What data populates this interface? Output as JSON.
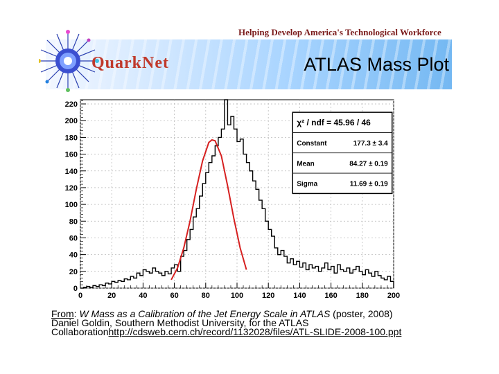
{
  "header": {
    "tagline": "Helping Develop America's Technological Workforce",
    "logo_text": "QuarkNet",
    "title": "ATLAS Mass Plot"
  },
  "colors": {
    "histogram": "#000000",
    "fit": "#d62020",
    "logo_text": "#c0392b"
  },
  "chart_data": {
    "type": "line",
    "title": "",
    "xlabel": "",
    "ylabel": "",
    "xlim": [
      0,
      200
    ],
    "ylim": [
      0,
      225
    ],
    "x_ticks": [
      "0",
      "20",
      "40",
      "60",
      "80",
      "100",
      "120",
      "140",
      "160",
      "180",
      "200"
    ],
    "y_ticks": [
      "0",
      "20",
      "40",
      "60",
      "80",
      "100",
      "120",
      "140",
      "160",
      "180",
      "200",
      "220"
    ],
    "grid": true,
    "series": [
      {
        "kind": "histogram",
        "bin_start": 0,
        "bin_width": 2,
        "values": [
          0,
          1,
          2,
          1,
          3,
          2,
          4,
          3,
          6,
          5,
          8,
          7,
          9,
          8,
          11,
          10,
          14,
          12,
          18,
          15,
          22,
          20,
          18,
          24,
          20,
          18,
          15,
          20,
          17,
          24,
          28,
          20,
          38,
          45,
          58,
          70,
          85,
          95,
          110,
          125,
          138,
          150,
          158,
          170,
          180,
          190,
          230,
          195,
          205,
          190,
          175,
          178,
          160,
          150,
          140,
          128,
          118,
          105,
          95,
          80,
          70,
          62,
          48,
          40,
          45,
          38,
          30,
          35,
          28,
          32,
          25,
          30,
          22,
          28,
          24,
          26,
          20,
          24,
          30,
          22,
          26,
          18,
          28,
          22,
          20,
          24,
          18,
          22,
          26,
          20,
          16,
          22,
          18,
          14,
          20,
          15,
          12,
          10,
          14,
          8
        ]
      },
      {
        "kind": "gaussian-fit",
        "x": [
          58,
          62,
          66,
          70,
          74,
          78,
          82,
          84,
          86,
          90,
          94,
          98,
          102,
          106
        ],
        "values": [
          10,
          24,
          48,
          80,
          118,
          152,
          174,
          177,
          176,
          158,
          122,
          83,
          48,
          22
        ]
      }
    ],
    "stats_box": {
      "rows": [
        {
          "label": "χ² / ndf = 45.96 / 46",
          "value": ""
        },
        {
          "label": "Constant",
          "value": "177.3 ± 3.4"
        },
        {
          "label": "Mean",
          "value": "84.27 ± 0.19"
        },
        {
          "label": "Sigma",
          "value": "11.69 ± 0.19"
        }
      ]
    }
  },
  "caption": {
    "from_label": "From",
    "sep": ": ",
    "title": "W Mass as a Calibration of the Jet Energy Scale in ATLAS",
    "rest1": " (poster, 2008)",
    "line2": "Daniel Goldin, Southern Methodist University, for the ATLAS",
    "line3": "Collaboration",
    "url": "http://cdsweb.cern.ch/record/1132028/files/ATL-SLIDE-2008-100.ppt"
  }
}
